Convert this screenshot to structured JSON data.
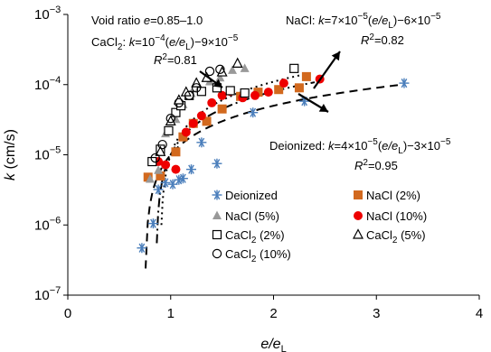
{
  "chart_data": {
    "type": "scatter",
    "xlabel": "e/eL",
    "ylabel": "k (cm/s)",
    "xlim": [
      0,
      4
    ],
    "ylim": [
      1e-07,
      0.001
    ],
    "y_scale": "log",
    "x_ticks": [
      "0",
      "1",
      "2",
      "3",
      "4"
    ],
    "y_ticks": [
      {
        "base": "10",
        "exp": "−7"
      },
      {
        "base": "10",
        "exp": "−6"
      },
      {
        "base": "10",
        "exp": "−5"
      },
      {
        "base": "10",
        "exp": "−4"
      },
      {
        "base": "10",
        "exp": "−3"
      }
    ],
    "grid": false,
    "legend": {
      "placement": "bottom-right",
      "items": [
        {
          "label": "Deionized",
          "series": 0
        },
        {
          "label": "NaCl (2%)",
          "series": 1
        },
        {
          "label": "NaCl (5%)",
          "series": 2
        },
        {
          "label": "NaCl (10%)",
          "series": 3
        },
        {
          "label": "CaCl2 (2%)",
          "series": 4
        },
        {
          "label": "CaCl2 (5%)",
          "series": 5
        },
        {
          "label": "CaCl2 (10%)",
          "series": 6
        }
      ]
    },
    "series": [
      {
        "name": "Deionized",
        "marker": "asterisk",
        "color": "#4a7ebb",
        "points": [
          [
            0.72,
            4.7e-07
          ],
          [
            0.83,
            1.05e-06
          ],
          [
            0.88,
            3.2e-06
          ],
          [
            0.95,
            4e-06
          ],
          [
            1.02,
            3.8e-06
          ],
          [
            1.08,
            4.4e-06
          ],
          [
            1.12,
            4.6e-06
          ],
          [
            1.2,
            6.2e-06
          ],
          [
            1.3,
            1.5e-05
          ],
          [
            1.45,
            7.5e-06
          ],
          [
            1.8,
            4e-05
          ],
          [
            2.3,
            5.8e-05
          ],
          [
            3.27,
            0.000105
          ]
        ]
      },
      {
        "name": "NaCl (2%)",
        "marker": "square-filled",
        "color": "#d2691e",
        "points": [
          [
            0.78,
            4.8e-06
          ],
          [
            0.9,
            5e-06
          ],
          [
            1.05,
            1.1e-05
          ],
          [
            1.12,
            1.8e-05
          ],
          [
            1.22,
            2.8e-05
          ],
          [
            1.35,
            3e-05
          ],
          [
            1.5,
            4.5e-05
          ],
          [
            1.68,
            6.8e-05
          ],
          [
            1.85,
            7.8e-05
          ],
          [
            2.05,
            8.5e-05
          ],
          [
            2.25,
            9e-05
          ],
          [
            2.32,
            0.00013
          ]
        ]
      },
      {
        "name": "NaCl (5%)",
        "marker": "triangle-filled",
        "color": "#999999",
        "points": [
          [
            0.8,
            4.5e-06
          ],
          [
            0.88,
            6e-06
          ],
          [
            0.95,
            2e-05
          ],
          [
            1.05,
            3.2e-05
          ],
          [
            1.12,
            5.2e-05
          ],
          [
            1.2,
            7.5e-05
          ],
          [
            1.28,
            9e-05
          ],
          [
            1.38,
            0.00011
          ],
          [
            1.48,
            0.000125
          ],
          [
            1.6,
            0.00016
          ],
          [
            1.72,
            0.00017
          ]
        ]
      },
      {
        "name": "NaCl (10%)",
        "marker": "circle-filled",
        "color": "#ee0000",
        "points": [
          [
            0.88,
            8e-06
          ],
          [
            0.95,
            7.2e-06
          ],
          [
            1.05,
            6.2e-06
          ],
          [
            1.15,
            2.1e-05
          ],
          [
            1.22,
            2.8e-05
          ],
          [
            1.3,
            3.6e-05
          ],
          [
            1.4,
            5.5e-05
          ],
          [
            1.5,
            7e-05
          ],
          [
            1.58,
            8e-05
          ],
          [
            1.7,
            6.5e-05
          ],
          [
            1.82,
            7e-05
          ],
          [
            1.95,
            7.8e-05
          ],
          [
            2.1,
            0.000105
          ],
          [
            2.45,
            0.00012
          ]
        ]
      },
      {
        "name": "CaCl2 (2%)",
        "marker": "square-open",
        "color": "#000000",
        "points": [
          [
            0.82,
            8e-06
          ],
          [
            0.9,
            1.2e-05
          ],
          [
            0.98,
            2.2e-05
          ],
          [
            1.05,
            4e-05
          ],
          [
            1.1,
            5e-05
          ],
          [
            1.18,
            7e-05
          ],
          [
            1.3,
            8e-05
          ],
          [
            1.45,
            9e-05
          ],
          [
            1.58,
            8.2e-05
          ],
          [
            1.72,
            7.6e-05
          ],
          [
            2.2,
            0.00017
          ]
        ]
      },
      {
        "name": "CaCl2 (5%)",
        "marker": "triangle-open",
        "color": "#000000",
        "points": [
          [
            0.9,
            1.1e-05
          ],
          [
            1.0,
            3e-05
          ],
          [
            1.08,
            6e-05
          ],
          [
            1.15,
            7.8e-05
          ],
          [
            1.25,
            0.000105
          ],
          [
            1.35,
            0.000125
          ],
          [
            1.5,
            0.00015
          ],
          [
            1.65,
            0.0002
          ]
        ]
      },
      {
        "name": "CaCl2 (10%)",
        "marker": "circle-open",
        "color": "#000000",
        "points": [
          [
            0.85,
            9e-06
          ],
          [
            0.92,
            1.4e-05
          ],
          [
            1.0,
            3.3e-05
          ],
          [
            1.08,
            5.5e-05
          ],
          [
            1.18,
            7e-05
          ],
          [
            1.25,
            9e-05
          ],
          [
            1.38,
            0.000155
          ],
          [
            1.48,
            0.000165
          ]
        ]
      }
    ],
    "fit_lines": [
      {
        "name": "CaCl2",
        "style": "dotted",
        "a": 0.0001,
        "b": 9e-05,
        "xmin": 0.91,
        "xmax": 2.25
      },
      {
        "name": "NaCl",
        "style": "dash-dot",
        "a": 7e-05,
        "b": 6e-05,
        "xmin": 0.865,
        "xmax": 2.4
      },
      {
        "name": "Deionized",
        "style": "dashed",
        "a": 4e-05,
        "b": 3e-05,
        "xmin": 0.756,
        "xmax": 3.28
      }
    ],
    "annotations": {
      "void_ratio": {
        "prefix": "Void ratio ",
        "var": "e",
        "suffix": "=0.85–1.0"
      },
      "cacl2_eq": {
        "label": "CaCl",
        "sub": "2",
        "mid": ": ",
        "k": "k",
        "expr1": "=10",
        "exp1": "−4",
        "e_part": "(e/e",
        "sub_L": "L",
        "tail": ")−9×10",
        "exp2": "−5"
      },
      "cacl2_r2": {
        "r": "R",
        "sup": "2",
        "value": "=0.81"
      },
      "nacl_eq": {
        "label": "NaCl: ",
        "k": "k",
        "expr1": "=7×10",
        "exp1": "−5",
        "e_part": "(e/e",
        "sub_L": "L",
        "tail": ")−6×10",
        "exp2": "−5"
      },
      "nacl_r2": {
        "r": "R",
        "sup": "2",
        "value": "=0.82"
      },
      "deion_eq": {
        "label": "Deionized: ",
        "k": "k",
        "expr1": "=4×10",
        "exp1": "−5",
        "e_part": "(e/e",
        "sub_L": "L",
        "tail": ")−3×10",
        "exp2": "−5"
      },
      "deion_r2": {
        "r": "R",
        "sup": "2",
        "value": "=0.95"
      }
    }
  }
}
